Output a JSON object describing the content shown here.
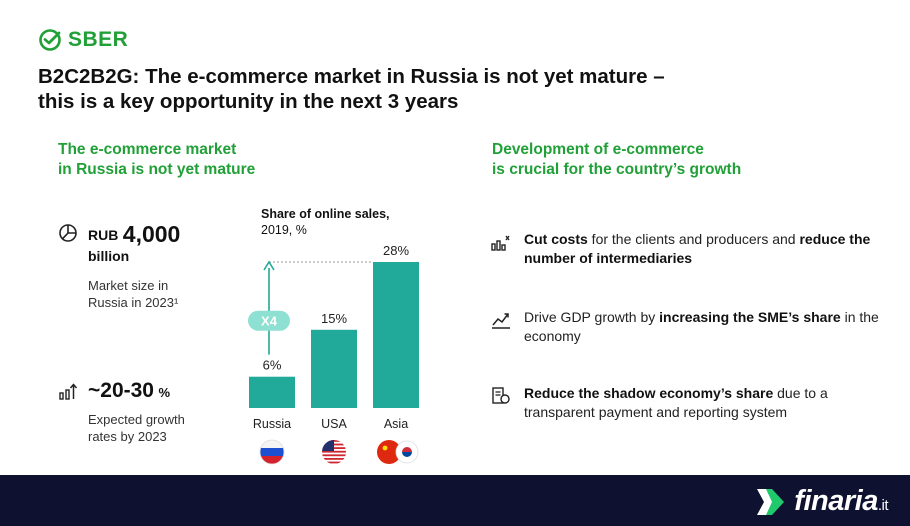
{
  "logo": {
    "text": "SBER"
  },
  "headline": {
    "line1": "B2C2B2G: The e-commerce market in Russia is not yet mature –",
    "line2": "this is a key opportunity in the next 3 years"
  },
  "left_section": {
    "title_line1": "The e-commerce market",
    "title_line2": "in Russia is not yet mature",
    "stat1": {
      "currency": "RUB",
      "value": "4,000",
      "unit": "billion",
      "desc_line1": "Market size in",
      "desc_line2": "Russia in 2023¹"
    },
    "stat2": {
      "value": "~20-30",
      "unit": "%",
      "desc_line1": "Expected growth",
      "desc_line2": "rates by 2023"
    }
  },
  "right_section": {
    "title_line1": "Development of e-commerce",
    "title_line2": "is crucial for the country’s growth",
    "bullets": [
      {
        "icon": "cost-icon",
        "bold1": "Cut costs",
        "text1": " for the clients and producers and ",
        "bold2": "reduce the number of intermediaries",
        "text2": ""
      },
      {
        "icon": "growth-chart-icon",
        "bold1": "",
        "text1": "Drive GDP growth by ",
        "bold2": "increasing the SME’s share",
        "text2": " in the economy"
      },
      {
        "icon": "document-icon",
        "bold1": "Reduce the shadow economy’s share",
        "text1": " due to a transparent payment and reporting system",
        "bold2": "",
        "text2": ""
      }
    ]
  },
  "chart_data": {
    "type": "bar",
    "title": "Share of online sales,",
    "subtitle": "2019, %",
    "categories": [
      "Russia",
      "USA",
      "Asia"
    ],
    "values": [
      6,
      15,
      28
    ],
    "value_labels": [
      "6%",
      "15%",
      "28%"
    ],
    "annotation": "X4",
    "bar_color": "#21a99a",
    "accent_color": "#8ee0d2",
    "flags": [
      "russia-flag-icon",
      "usa-flag-icon",
      "china-korea-flag-icons"
    ]
  },
  "footer": {
    "brand": "finaria",
    "suffix": ".it"
  },
  "colors": {
    "green": "#21a038",
    "teal": "#21a99a",
    "footer_bg": "#0e1130"
  }
}
